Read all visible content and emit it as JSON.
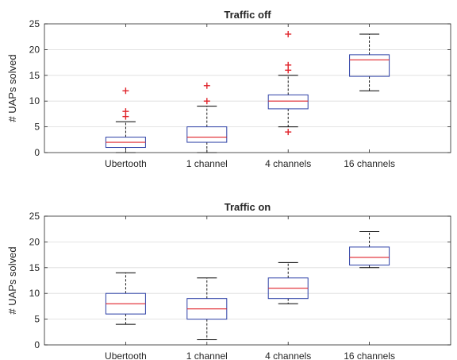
{
  "chart_data": [
    {
      "type": "box",
      "title": "Traffic off",
      "ylabel": "# UAPs solved",
      "categories": [
        "Ubertooth",
        "1 channel",
        "4 channels",
        "16 channels"
      ],
      "ylim": [
        0,
        25
      ],
      "yticks": [
        0,
        5,
        10,
        15,
        20,
        25
      ],
      "grid": true,
      "boxes": [
        {
          "category": "Ubertooth",
          "min": 0,
          "q1": 1,
          "median": 2,
          "q3": 3,
          "max": 6,
          "outliers": [
            7,
            8,
            12
          ]
        },
        {
          "category": "1 channel",
          "min": 0,
          "q1": 2,
          "median": 3,
          "q3": 5,
          "max": 9,
          "outliers": [
            10,
            13
          ]
        },
        {
          "category": "4 channels",
          "min": 5,
          "q1": 8.5,
          "median": 10,
          "q3": 11.2,
          "max": 15,
          "outliers": [
            4,
            16,
            17,
            23
          ]
        },
        {
          "category": "16 channels",
          "min": 12,
          "q1": 14.8,
          "median": 18,
          "q3": 19,
          "max": 23,
          "outliers": []
        }
      ]
    },
    {
      "type": "box",
      "title": "Traffic on",
      "ylabel": "# UAPs solved",
      "categories": [
        "Ubertooth",
        "1 channel",
        "4 channels",
        "16 channels"
      ],
      "ylim": [
        0,
        25
      ],
      "yticks": [
        0,
        5,
        10,
        15,
        20,
        25
      ],
      "grid": true,
      "boxes": [
        {
          "category": "Ubertooth",
          "min": 4,
          "q1": 6,
          "median": 8,
          "q3": 10,
          "max": 14,
          "outliers": []
        },
        {
          "category": "1 channel",
          "min": 1,
          "q1": 5,
          "median": 7,
          "q3": 9,
          "max": 13,
          "outliers": []
        },
        {
          "category": "4 channels",
          "min": 8,
          "q1": 9,
          "median": 11,
          "q3": 13,
          "max": 16,
          "outliers": []
        },
        {
          "category": "16 channels",
          "min": 15,
          "q1": 15.5,
          "median": 17,
          "q3": 19,
          "max": 22,
          "outliers": []
        }
      ]
    }
  ],
  "colors": {
    "box": "#2c3fa6",
    "median": "#e0242b",
    "outlier": "#e0242b",
    "whisker": "#000000"
  }
}
